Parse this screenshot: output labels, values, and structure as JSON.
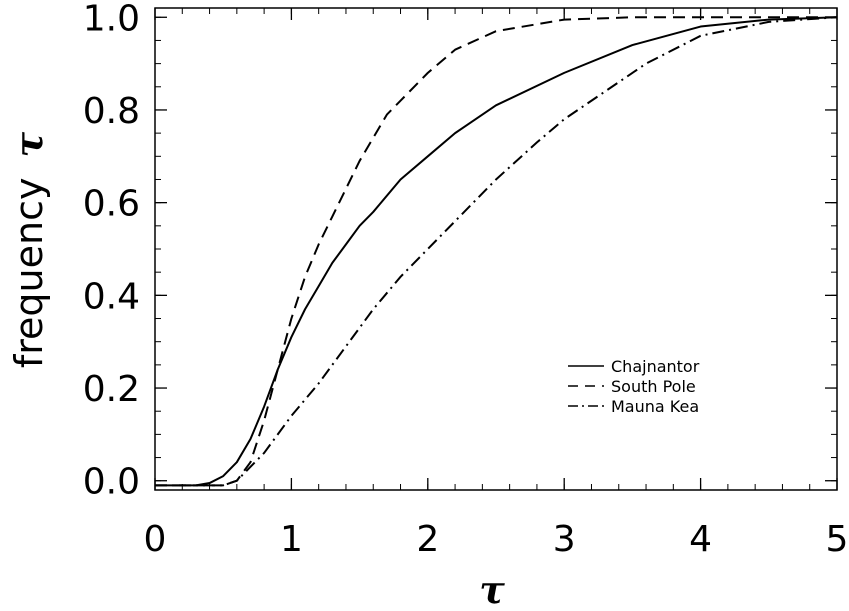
{
  "chart_data": {
    "type": "line",
    "xlabel": "τ",
    "ylabel_prefix": "frequency",
    "ylabel_symbol": "τ",
    "xlim": [
      0,
      5
    ],
    "ylim": [
      -0.02,
      1.02
    ],
    "x_ticks": [
      0,
      1,
      2,
      3,
      4,
      5
    ],
    "x_tick_labels": [
      "0",
      "1",
      "2",
      "3",
      "4",
      "5"
    ],
    "y_ticks": [
      0.0,
      0.2,
      0.4,
      0.6,
      0.8,
      1.0
    ],
    "y_tick_labels": [
      "0.0",
      "0.2",
      "0.4",
      "0.6",
      "0.8",
      "1.0"
    ],
    "grid": false,
    "legend_position": "lower-right",
    "series": [
      {
        "name": "Chajnantor",
        "dash": "solid",
        "x": [
          0.0,
          0.3,
          0.4,
          0.5,
          0.6,
          0.7,
          0.8,
          0.9,
          1.0,
          1.1,
          1.2,
          1.3,
          1.4,
          1.5,
          1.6,
          1.8,
          2.0,
          2.2,
          2.5,
          3.0,
          3.5,
          4.0,
          4.5,
          5.0
        ],
        "y": [
          -0.01,
          -0.01,
          -0.005,
          0.01,
          0.04,
          0.09,
          0.16,
          0.24,
          0.31,
          0.37,
          0.42,
          0.47,
          0.51,
          0.55,
          0.58,
          0.65,
          0.7,
          0.75,
          0.81,
          0.88,
          0.94,
          0.98,
          0.995,
          1.0
        ]
      },
      {
        "name": "South Pole",
        "dash": "dashed",
        "x": [
          0.0,
          0.5,
          0.6,
          0.7,
          0.8,
          0.9,
          1.0,
          1.1,
          1.2,
          1.3,
          1.4,
          1.5,
          1.6,
          1.7,
          1.8,
          2.0,
          2.2,
          2.5,
          3.0,
          3.5,
          4.0,
          5.0
        ],
        "y": [
          -0.01,
          -0.01,
          0.0,
          0.04,
          0.13,
          0.24,
          0.35,
          0.44,
          0.51,
          0.57,
          0.63,
          0.69,
          0.74,
          0.79,
          0.82,
          0.88,
          0.93,
          0.97,
          0.995,
          1.0,
          1.0,
          1.0
        ]
      },
      {
        "name": "Mauna Kea",
        "dash": "dashdot",
        "x": [
          0.0,
          0.5,
          0.6,
          0.7,
          0.8,
          0.9,
          1.0,
          1.2,
          1.4,
          1.6,
          1.8,
          2.0,
          2.2,
          2.5,
          2.8,
          3.0,
          3.3,
          3.6,
          4.0,
          4.5,
          5.0
        ],
        "y": [
          -0.01,
          -0.01,
          0.0,
          0.03,
          0.06,
          0.1,
          0.14,
          0.21,
          0.29,
          0.37,
          0.44,
          0.5,
          0.56,
          0.65,
          0.73,
          0.78,
          0.84,
          0.9,
          0.96,
          0.99,
          1.0
        ]
      }
    ]
  }
}
